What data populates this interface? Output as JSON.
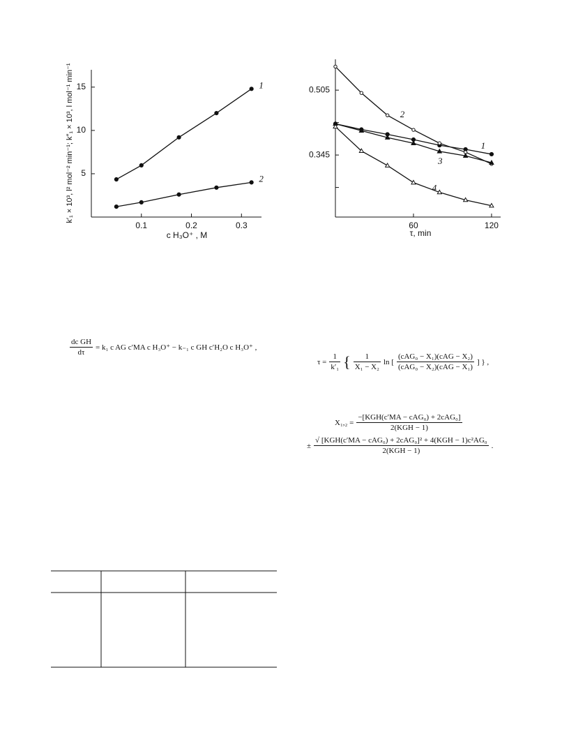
{
  "chart_data": [
    {
      "type": "line",
      "x_label": "c H₃O⁺ , M",
      "y_label": "k′₁ × 10³, l² mol⁻² min⁻¹;  k″₁ × 10³, l mol⁻¹ min⁻¹",
      "x": [
        0.05,
        0.1,
        0.175,
        0.25,
        0.32
      ],
      "xlim": [
        0,
        0.34
      ],
      "xticks": [
        0.1,
        0.2,
        0.3
      ],
      "ylim": [
        0,
        17
      ],
      "yticks": [
        5,
        10,
        15
      ],
      "series": [
        {
          "name": "1",
          "color": "#111111",
          "marker": "filled-circle",
          "values": [
            4.35,
            5.97,
            9.2,
            12.0,
            14.8
          ]
        },
        {
          "name": "2",
          "color": "#111111",
          "marker": "filled-circle",
          "values": [
            1.2,
            1.7,
            2.6,
            3.4,
            4.0
          ]
        }
      ]
    },
    {
      "type": "line",
      "x_label": "τ, min",
      "x": [
        0,
        20,
        40,
        60,
        80,
        100,
        120
      ],
      "xlim": [
        0,
        127
      ],
      "xticks": [
        60,
        120
      ],
      "ylim": [
        0.192,
        0.581
      ],
      "yticks": [
        0.345,
        0.505
      ],
      "yminorticks": [
        0.265,
        0.425
      ],
      "series": [
        {
          "name": "1",
          "color": "#111111",
          "marker": "filled-circle",
          "values": [
            0.422,
            0.408,
            0.396,
            0.383,
            0.369,
            0.359,
            0.347
          ]
        },
        {
          "name": "2",
          "color": "#111111",
          "marker": "open-circle",
          "values": [
            0.563,
            0.498,
            0.443,
            0.407,
            0.374,
            0.352,
            0.323
          ]
        },
        {
          "name": "3",
          "color": "#111111",
          "marker": "filled-triangle",
          "values": [
            0.422,
            0.405,
            0.388,
            0.374,
            0.354,
            0.343,
            0.326
          ]
        },
        {
          "name": "4",
          "color": "#111111",
          "marker": "open-triangle",
          "values": [
            0.415,
            0.355,
            0.319,
            0.277,
            0.253,
            0.234,
            0.22
          ]
        }
      ]
    }
  ],
  "equations": [
    {
      "numerator": "dc GH",
      "denominator": "dτ",
      "rhs": "= k₁ c AG c′MA c H₃O⁺ − k₋₁ c GH c′H₂O c H₃O⁺ ,"
    },
    {
      "lhs": "τ =",
      "n1": "1",
      "d1": "k′₁",
      "open": "{",
      "n2": "1",
      "d2": "X₁ − X₂",
      "ln": "ln [",
      "n3": "(cAG₀ − X₁)(cAG − X₂)",
      "d3": "(cAG₀ − X₂)(cAG − X₁)",
      "close": "] } ,"
    },
    {
      "lhs": "X₁,₂ =",
      "n1": "−[KGH(c′MA − cAG₀) + 2cAG₀]",
      "d1": "2(KGH − 1)",
      "pm": "±",
      "n2": "√ [KGH(c′MA − cAG₀) + 2cAG₀]² + 4(KGH − 1)c²AG₀",
      "d2": "2(KGH − 1)",
      "end": "."
    }
  ]
}
